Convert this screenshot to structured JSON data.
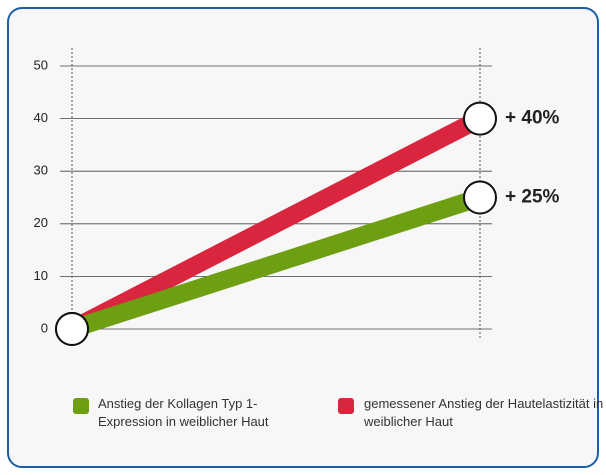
{
  "chart_data": {
    "type": "line",
    "categories": [
      null,
      null
    ],
    "series": [
      {
        "name": "Anstieg der Kollagen Typ 1-Expression in weiblicher Haut",
        "color": "#6e9e12",
        "values": [
          0,
          25
        ],
        "value_labels": [
          null,
          "+ 25%"
        ]
      },
      {
        "name": "gemessener Anstieg der Hautelastizität in weiblicher Haut",
        "color": "#d9263e",
        "values": [
          0,
          40
        ],
        "value_labels": [
          null,
          "+ 40%"
        ]
      }
    ],
    "ylim": [
      0,
      50
    ],
    "yticks": [
      0,
      10,
      20,
      30,
      40,
      50
    ],
    "grid": true
  }
}
